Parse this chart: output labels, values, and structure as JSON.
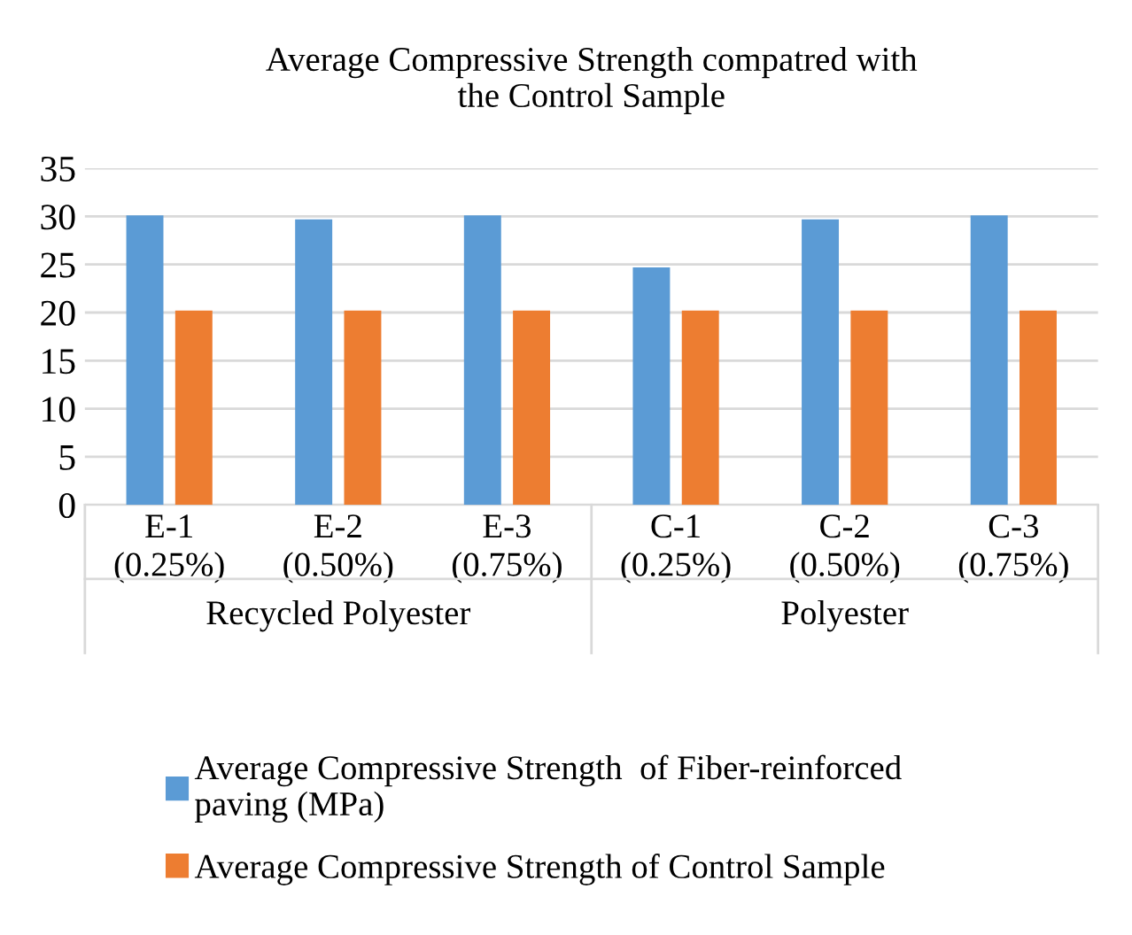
{
  "chart_data": {
    "type": "bar",
    "title": "Average Compressive Strength compatred with\nthe Control Sample",
    "categories": [
      "E-1\n(0.25%)",
      "E-2\n(0.50%)",
      "E-3\n(0.75%)",
      "C-1\n(0.25%)",
      "C-2\n(0.50%)",
      "C-3\n(0.75%)"
    ],
    "series": [
      {
        "name": "Average Compressive Strength  of Fiber-reinforced\npaving (MPa)",
        "color": "#5b9bd5",
        "values": [
          30.1,
          29.7,
          30.1,
          24.7,
          29.7,
          30.1
        ]
      },
      {
        "name": "Average Compressive Strength of Control Sample",
        "color": "#ed7d31",
        "values": [
          20.2,
          20.2,
          20.2,
          20.2,
          20.2,
          20.2
        ]
      }
    ],
    "annotations": [
      "Recycled Polyester",
      "Polyester"
    ],
    "ylim": [
      0,
      35
    ],
    "yticks": [
      0,
      5,
      10,
      15,
      20,
      25,
      30,
      35
    ],
    "grid": "y",
    "legend": "bottom"
  }
}
